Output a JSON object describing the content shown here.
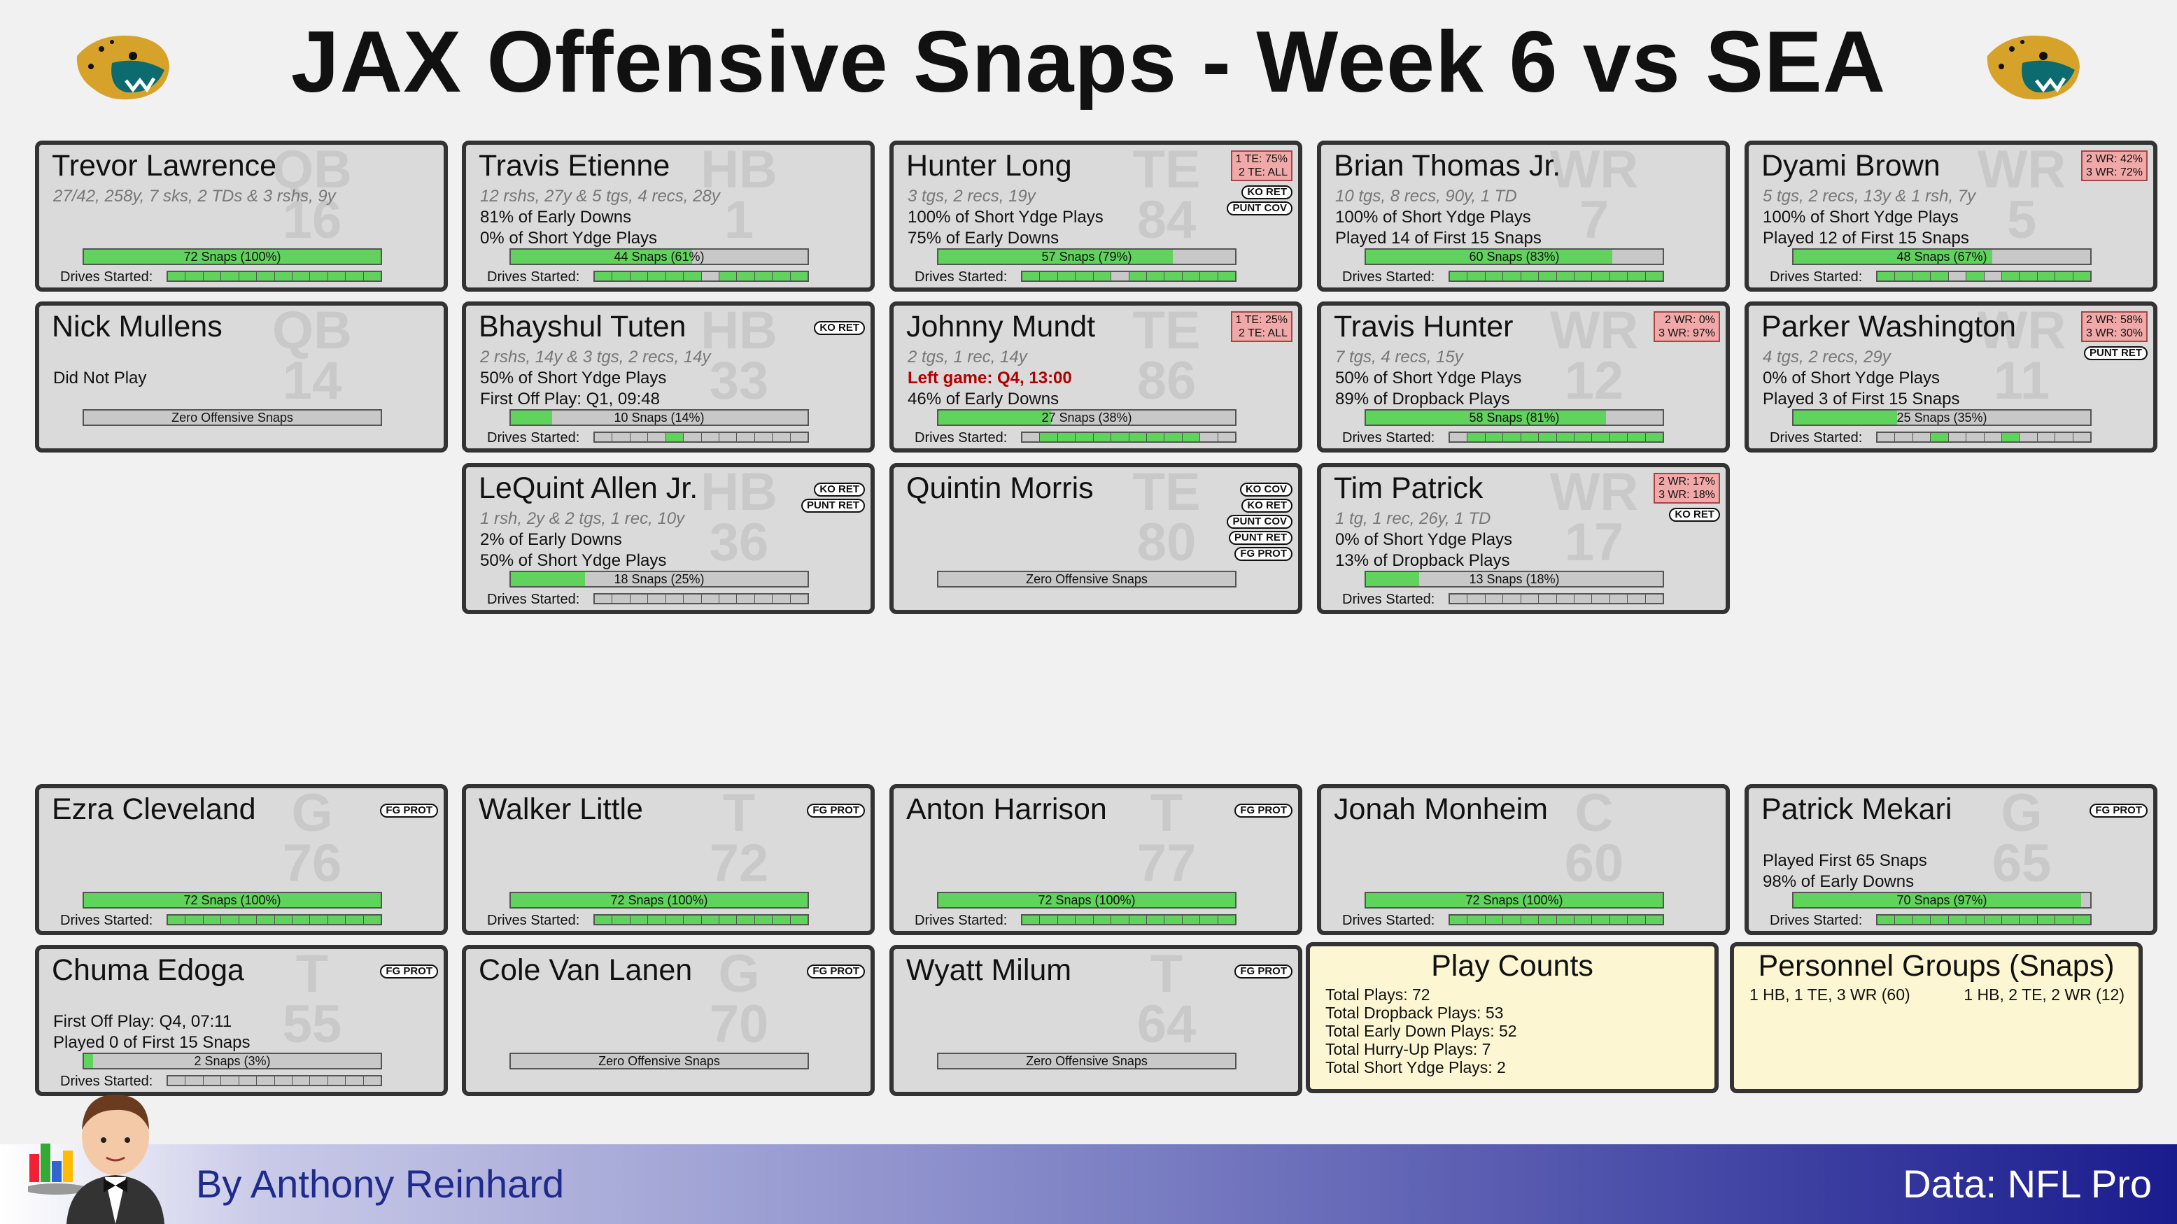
{
  "title": "JAX Offensive Snaps - Week 6 vs SEA",
  "footer": {
    "author": "By Anthony Reinhard",
    "source": "Data: NFL Pro"
  },
  "cards": [
    {
      "name": "Trevor Lawrence",
      "pos": "QB",
      "num": "16",
      "lines": [
        "27/42, 258y, 7 sks, 2 TDs & 3 rshs, 9y",
        "",
        ""
      ],
      "snaps": "72 Snaps (100%)",
      "pct": 1.0,
      "drives": [
        1,
        1,
        1,
        1,
        1,
        1,
        1,
        1,
        1,
        1,
        1,
        1
      ],
      "badges": [],
      "share": []
    },
    {
      "name": "Travis Etienne",
      "pos": "HB",
      "num": "1",
      "lines": [
        "12 rshs, 27y & 5 tgs, 4 recs, 28y",
        "81% of Early Downs",
        "0% of Short Ydge Plays"
      ],
      "snaps": "44 Snaps (61%)",
      "pct": 0.61,
      "drives": [
        1,
        1,
        1,
        1,
        1,
        1,
        0,
        1,
        1,
        1,
        1,
        1
      ],
      "badges": [],
      "share": []
    },
    {
      "name": "Hunter Long",
      "pos": "TE",
      "num": "84",
      "lines": [
        "3 tgs, 2 recs, 19y",
        "100% of Short Ydge Plays",
        "75% of Early Downs"
      ],
      "snaps": "57 Snaps (79%)",
      "pct": 0.79,
      "drives": [
        1,
        1,
        1,
        1,
        1,
        0,
        1,
        1,
        1,
        1,
        1,
        1
      ],
      "badges": [
        "KO RET",
        "PUNT COV"
      ],
      "share": [
        "1 TE: 75%",
        "2 TE: ALL"
      ]
    },
    {
      "name": "Brian Thomas Jr.",
      "pos": "WR",
      "num": "7",
      "lines": [
        "10 tgs, 8 recs, 90y, 1 TD",
        "100% of Short Ydge Plays",
        "Played 14 of First 15 Snaps"
      ],
      "snaps": "60 Snaps (83%)",
      "pct": 0.83,
      "drives": [
        1,
        1,
        1,
        1,
        1,
        1,
        1,
        1,
        1,
        1,
        1,
        1
      ],
      "badges": [],
      "share": []
    },
    {
      "name": "Dyami Brown",
      "pos": "WR",
      "num": "5",
      "lines": [
        "5 tgs, 2 recs, 13y & 1 rsh, 7y",
        "100% of Short Ydge Plays",
        "Played 12 of First 15 Snaps"
      ],
      "snaps": "48 Snaps (67%)",
      "pct": 0.67,
      "drives": [
        1,
        1,
        1,
        1,
        0,
        1,
        0,
        1,
        1,
        1,
        1,
        1
      ],
      "badges": [],
      "share": [
        "2 WR: 42%",
        "3 WR: 72%"
      ]
    },
    {
      "name": "Nick Mullens",
      "pos": "QB",
      "num": "14",
      "lines": [
        "",
        "Did Not Play",
        ""
      ],
      "snaps": "Zero Offensive Snaps",
      "pct": 0,
      "drives": [],
      "badges": [],
      "share": []
    },
    {
      "name": "Bhayshul Tuten",
      "pos": "HB",
      "num": "33",
      "lines": [
        "2 rshs, 14y & 3 tgs, 2 recs, 14y",
        "50% of Short Ydge Plays",
        "First Off Play: Q1, 09:48"
      ],
      "snaps": "10 Snaps (14%)",
      "pct": 0.14,
      "drives": [
        0,
        0,
        0,
        0,
        1,
        0,
        0,
        0,
        0,
        0,
        0,
        0
      ],
      "badges": [
        "KO RET"
      ],
      "share": []
    },
    {
      "name": "Johnny Mundt",
      "pos": "TE",
      "num": "86",
      "lines": [
        "2 tgs, 1 rec, 14y",
        "Left game: Q4, 13:00",
        "46% of Early Downs"
      ],
      "snaps": "27 Snaps (38%)",
      "pct": 0.38,
      "drives": [
        0,
        1,
        1,
        1,
        1,
        1,
        1,
        1,
        1,
        1,
        0,
        0
      ],
      "badges": [],
      "share": [
        "1 TE: 25%",
        "2 TE: ALL"
      ],
      "redLine": 1
    },
    {
      "name": "Travis Hunter",
      "pos": "WR",
      "num": "12",
      "lines": [
        "7 tgs, 4 recs, 15y",
        "50% of Short Ydge Plays",
        "89% of Dropback Plays"
      ],
      "snaps": "58 Snaps (81%)",
      "pct": 0.81,
      "drives": [
        0,
        1,
        1,
        1,
        1,
        1,
        1,
        1,
        1,
        1,
        1,
        1
      ],
      "badges": [],
      "share": [
        "2 WR:  0%",
        "3 WR: 97%"
      ]
    },
    {
      "name": "Parker Washington",
      "pos": "WR",
      "num": "11",
      "lines": [
        "4 tgs, 2 recs, 29y",
        "0% of Short Ydge Plays",
        "Played 3 of First 15 Snaps"
      ],
      "snaps": "25 Snaps (35%)",
      "pct": 0.35,
      "drives": [
        0,
        0,
        0,
        1,
        0,
        0,
        0,
        1,
        0,
        0,
        0,
        0
      ],
      "badges": [
        "PUNT RET"
      ],
      "share": [
        "2 WR: 58%",
        "3 WR: 30%"
      ]
    },
    {
      "name": "LeQuint Allen Jr.",
      "pos": "HB",
      "num": "36",
      "lines": [
        "1 rsh, 2y & 2 tgs, 1 rec, 10y",
        "2% of Early Downs",
        "50% of Short Ydge Plays"
      ],
      "snaps": "18 Snaps (25%)",
      "pct": 0.25,
      "drives": [
        0,
        0,
        0,
        0,
        0,
        0,
        0,
        0,
        0,
        0,
        0,
        0
      ],
      "badges": [
        "KO RET",
        "PUNT RET"
      ],
      "share": []
    },
    {
      "name": "Quintin Morris",
      "pos": "TE",
      "num": "80",
      "lines": [
        "",
        "",
        ""
      ],
      "snaps": "Zero Offensive Snaps",
      "pct": 0,
      "drives": [],
      "badges": [
        "KO COV",
        "KO RET",
        "PUNT COV",
        "PUNT RET",
        "FG PROT"
      ],
      "share": []
    },
    {
      "name": "Tim Patrick",
      "pos": "WR",
      "num": "17",
      "lines": [
        "1 tg, 1 rec, 26y, 1 TD",
        "0% of Short Ydge Plays",
        "13% of Dropback Plays"
      ],
      "snaps": "13 Snaps (18%)",
      "pct": 0.18,
      "drives": [
        0,
        0,
        0,
        0,
        0,
        0,
        0,
        0,
        0,
        0,
        0,
        0
      ],
      "badges": [
        "KO RET"
      ],
      "share": [
        "2 WR: 17%",
        "3 WR: 18%"
      ]
    },
    {
      "name": "Ezra Cleveland",
      "pos": "G",
      "num": "76",
      "lines": [
        "",
        "",
        ""
      ],
      "snaps": "72 Snaps (100%)",
      "pct": 1.0,
      "drives": [
        1,
        1,
        1,
        1,
        1,
        1,
        1,
        1,
        1,
        1,
        1,
        1
      ],
      "badges": [
        "FG PROT"
      ],
      "share": []
    },
    {
      "name": "Walker Little",
      "pos": "T",
      "num": "72",
      "lines": [
        "",
        "",
        ""
      ],
      "snaps": "72 Snaps (100%)",
      "pct": 1.0,
      "drives": [
        1,
        1,
        1,
        1,
        1,
        1,
        1,
        1,
        1,
        1,
        1,
        1
      ],
      "badges": [
        "FG PROT"
      ],
      "share": []
    },
    {
      "name": "Anton Harrison",
      "pos": "T",
      "num": "77",
      "lines": [
        "",
        "",
        ""
      ],
      "snaps": "72 Snaps (100%)",
      "pct": 1.0,
      "drives": [
        1,
        1,
        1,
        1,
        1,
        1,
        1,
        1,
        1,
        1,
        1,
        1
      ],
      "badges": [
        "FG PROT"
      ],
      "share": []
    },
    {
      "name": "Jonah Monheim",
      "pos": "C",
      "num": "60",
      "lines": [
        "",
        "",
        ""
      ],
      "snaps": "72 Snaps (100%)",
      "pct": 1.0,
      "drives": [
        1,
        1,
        1,
        1,
        1,
        1,
        1,
        1,
        1,
        1,
        1,
        1
      ],
      "badges": [],
      "share": []
    },
    {
      "name": "Patrick Mekari",
      "pos": "G",
      "num": "65",
      "lines": [
        "",
        "Played First 65 Snaps",
        "98% of Early Downs"
      ],
      "snaps": "70 Snaps (97%)",
      "pct": 0.97,
      "drives": [
        1,
        1,
        1,
        1,
        1,
        1,
        1,
        1,
        1,
        1,
        1,
        1
      ],
      "badges": [
        "FG PROT"
      ],
      "share": []
    },
    {
      "name": "Chuma Edoga",
      "pos": "T",
      "num": "55",
      "lines": [
        "",
        "First Off Play: Q4, 07:11",
        "Played 0 of First 15 Snaps"
      ],
      "snaps": "2 Snaps (3%)",
      "pct": 0.03,
      "drives": [
        0,
        0,
        0,
        0,
        0,
        0,
        0,
        0,
        0,
        0,
        0,
        0
      ],
      "badges": [
        "FG PROT"
      ],
      "share": []
    },
    {
      "name": "Cole Van Lanen",
      "pos": "G",
      "num": "70",
      "lines": [
        "",
        "",
        ""
      ],
      "snaps": "Zero Offensive Snaps",
      "pct": 0,
      "drives": [],
      "badges": [
        "FG PROT"
      ],
      "share": []
    },
    {
      "name": "Wyatt Milum",
      "pos": "T",
      "num": "64",
      "lines": [
        "",
        "",
        ""
      ],
      "snaps": "Zero Offensive Snaps",
      "pct": 0,
      "drives": [],
      "badges": [
        "FG PROT"
      ],
      "share": []
    }
  ],
  "drives_label": "Drives Started:",
  "play_counts": {
    "title": "Play Counts",
    "items": [
      "Total Plays: 72",
      "Total Dropback Plays: 53",
      "Total Early Down Plays: 52",
      "Total Hurry-Up Plays: 7",
      "Total Short Ydge Plays: 2"
    ]
  },
  "personnel": {
    "title": "Personnel Groups (Snaps)",
    "left": "1 HB, 1 TE, 3 WR (60)",
    "right": "1 HB, 2 TE, 2 WR (12)"
  }
}
